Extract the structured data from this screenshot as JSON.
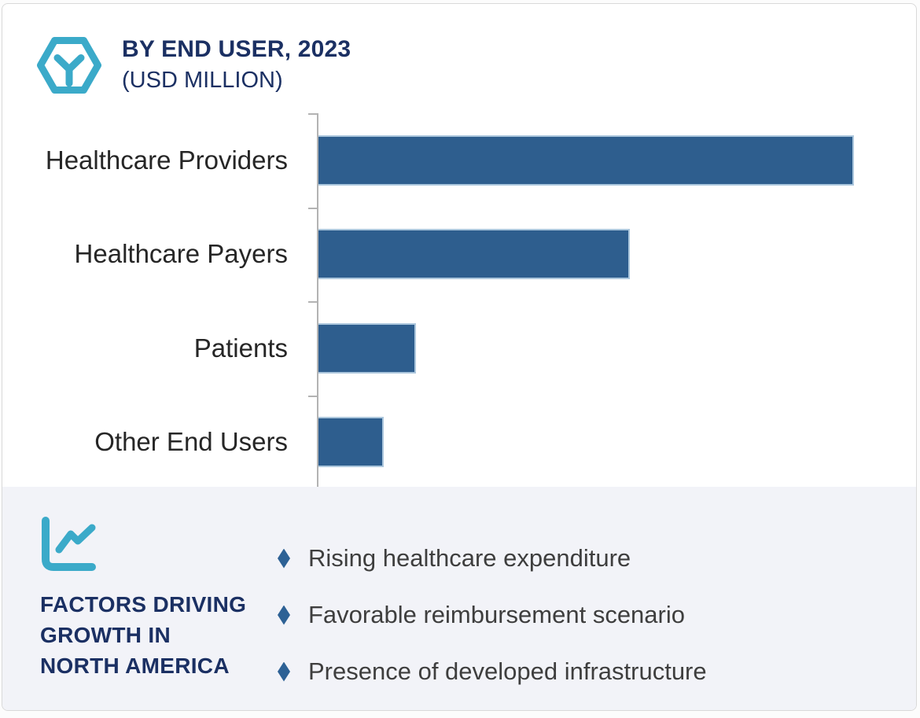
{
  "header": {
    "title_line1": "BY END USER, 2023",
    "title_line2": "(USD MILLION)"
  },
  "chart_data": {
    "type": "bar",
    "orientation": "horizontal",
    "title": "BY END USER, 2023 (USD MILLION)",
    "categories": [
      "Healthcare Providers",
      "Healthcare Payers",
      "Patients",
      "Other End Users"
    ],
    "values": [
      100,
      58,
      18,
      12
    ],
    "value_note": "relative units estimated from bar lengths; value axis is not labeled in the figure",
    "xlabel": "",
    "ylabel": "",
    "xlim": [
      0,
      112
    ],
    "grid": false,
    "legend": false,
    "bar_color": "#2e5e8e",
    "bar_edge_color": "#acc7dd",
    "axis_color": "#b3b3b3"
  },
  "factors": {
    "heading_lines": [
      "FACTORS DRIVING",
      "GROWTH IN",
      "NORTH AMERICA"
    ],
    "items": [
      "Rising healthcare expenditure",
      "Favorable reimbursement scenario",
      "Presence of developed infrastructure"
    ],
    "bullet_glyph": "diamond",
    "bullet_color": "#2d6195",
    "panel_bg": "#f2f3f8",
    "heading_color": "#1b3063"
  },
  "icons": {
    "header_icon": "hexagon-box-icon",
    "factors_icon": "line-chart-icon"
  },
  "colors": {
    "accent_cyan": "#3baac9",
    "title_navy": "#1b3063",
    "category_text": "#262626",
    "bullet_text": "#3e3e3e",
    "card_border": "#d9d9d9"
  }
}
